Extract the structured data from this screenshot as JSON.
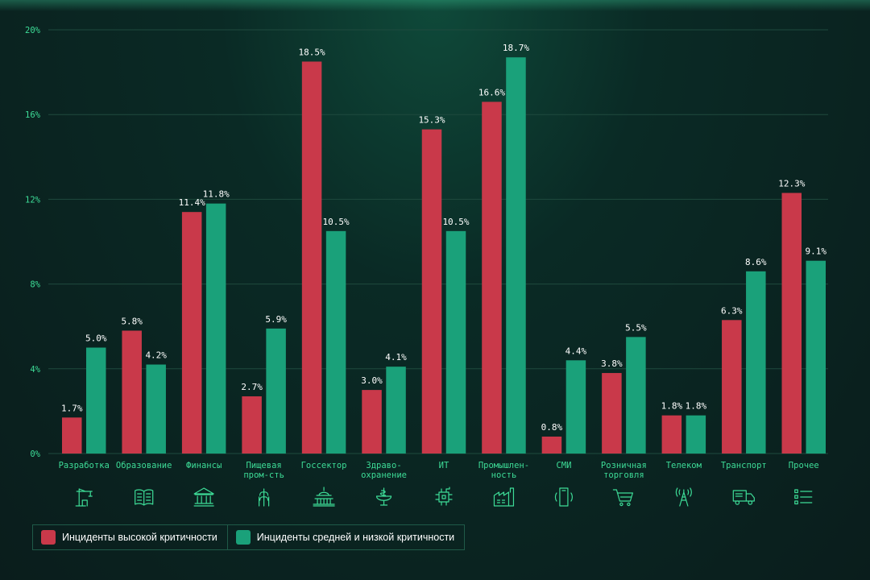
{
  "chart_data": {
    "type": "bar",
    "ylim": [
      0,
      20
    ],
    "yticks": [
      0,
      4,
      8,
      12,
      16,
      20
    ],
    "ytick_labels": [
      "0%",
      "4%",
      "8%",
      "12%",
      "16%",
      "20%"
    ],
    "grid": true,
    "categories": [
      {
        "label": [
          "Разработка"
        ],
        "icon": "crane-icon"
      },
      {
        "label": [
          "Образование"
        ],
        "icon": "book-icon"
      },
      {
        "label": [
          "Финансы"
        ],
        "icon": "bank-icon"
      },
      {
        "label": [
          "Пищевая",
          "пром-сть"
        ],
        "icon": "wheat-icon"
      },
      {
        "label": [
          "Госсектор"
        ],
        "icon": "capitol-icon"
      },
      {
        "label": [
          "Здраво-",
          "охранение"
        ],
        "icon": "medicine-bowl-icon"
      },
      {
        "label": [
          "ИТ"
        ],
        "icon": "chip-icon"
      },
      {
        "label": [
          "Промышлен-",
          "ность"
        ],
        "icon": "factory-icon"
      },
      {
        "label": [
          "СМИ"
        ],
        "icon": "smartphone-icon"
      },
      {
        "label": [
          "Розничная",
          "торговля"
        ],
        "icon": "cart-icon"
      },
      {
        "label": [
          "Телеком"
        ],
        "icon": "antenna-tower-icon"
      },
      {
        "label": [
          "Транспорт"
        ],
        "icon": "truck-icon"
      },
      {
        "label": [
          "Прочее"
        ],
        "icon": "list-icon"
      }
    ],
    "series": [
      {
        "name": "Инциденты высокой критичности",
        "color": "#c9394a",
        "values": [
          1.7,
          5.8,
          11.4,
          2.7,
          18.5,
          3.0,
          15.3,
          16.6,
          0.8,
          3.8,
          1.8,
          6.3,
          12.3
        ],
        "labels": [
          "1.7%",
          "5.8%",
          "11.4%",
          "2.7%",
          "18.5%",
          "3.0%",
          "15.3%",
          "16.6%",
          "0.8%",
          "3.8%",
          "1.8%",
          "6.3%",
          "12.3%"
        ]
      },
      {
        "name": "Инциденты средней и низкой критичности",
        "color": "#1aa17a",
        "values": [
          5.0,
          4.2,
          11.8,
          5.9,
          10.5,
          4.1,
          10.5,
          18.7,
          4.4,
          5.5,
          1.8,
          8.6,
          9.1
        ],
        "labels": [
          "5.0%",
          "4.2%",
          "11.8%",
          "5.9%",
          "10.5%",
          "4.1%",
          "10.5%",
          "18.7%",
          "4.4%",
          "5.5%",
          "1.8%",
          "8.6%",
          "9.1%"
        ]
      }
    ],
    "legend_position": "bottom-left"
  },
  "colors": {
    "axis_label": "#3ddc97",
    "grid": "#1f4a3e",
    "text": "#ffffff"
  }
}
